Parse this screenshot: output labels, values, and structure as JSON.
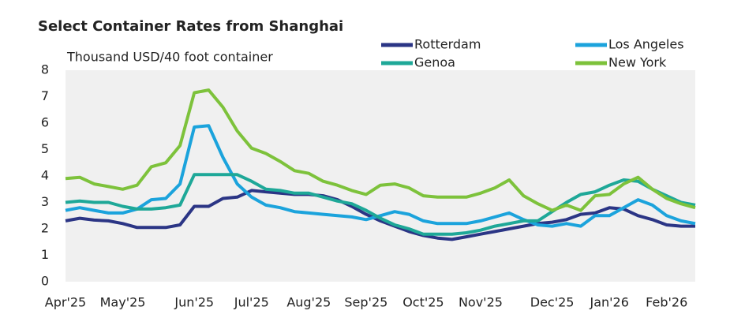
{
  "chart_data": {
    "type": "line",
    "title": "Select Container Rates from Shanghai",
    "y_label": "Thousand USD/40 foot container",
    "categories": [
      "Apr'25",
      null,
      null,
      null,
      "May'25",
      null,
      null,
      null,
      null,
      "Jun'25",
      null,
      null,
      null,
      "Jul'25",
      null,
      null,
      null,
      "Aug'25",
      null,
      null,
      null,
      "Sep'25",
      null,
      null,
      null,
      "Oct'25",
      null,
      null,
      null,
      "Nov'25",
      null,
      null,
      null,
      null,
      "Dec'25",
      null,
      null,
      null,
      "Jan'26",
      null,
      null,
      null,
      "Feb'26",
      null,
      null
    ],
    "series": [
      {
        "name": "Rotterdam",
        "color": "#2b3585",
        "values": [
          2.3,
          2.4,
          2.33,
          2.3,
          2.2,
          2.05,
          2.05,
          2.05,
          2.15,
          2.85,
          2.85,
          3.15,
          3.2,
          3.45,
          3.4,
          3.35,
          3.3,
          3.3,
          3.25,
          3.1,
          2.85,
          2.55,
          2.3,
          2.1,
          1.9,
          1.75,
          1.65,
          1.6,
          1.7,
          1.8,
          1.9,
          2.0,
          2.1,
          2.2,
          2.25,
          2.35,
          2.55,
          2.6,
          2.8,
          2.75,
          2.5,
          2.35,
          2.15,
          2.1,
          2.1
        ]
      },
      {
        "name": "Los Angeles",
        "color": "#1ba3dc",
        "values": [
          2.7,
          2.8,
          2.7,
          2.6,
          2.6,
          2.75,
          3.1,
          3.15,
          3.7,
          5.85,
          5.9,
          4.7,
          3.7,
          3.2,
          2.9,
          2.8,
          2.65,
          2.6,
          2.55,
          2.5,
          2.45,
          2.35,
          2.5,
          2.65,
          2.55,
          2.3,
          2.2,
          2.2,
          2.2,
          2.3,
          2.45,
          2.6,
          2.35,
          2.15,
          2.1,
          2.2,
          2.1,
          2.5,
          2.5,
          2.8,
          3.1,
          2.9,
          2.5,
          2.3,
          2.2
        ]
      },
      {
        "name": "Genoa",
        "color": "#1ea898",
        "values": [
          3.0,
          3.05,
          3.0,
          3.0,
          2.85,
          2.75,
          2.75,
          2.8,
          2.9,
          4.05,
          4.05,
          4.05,
          4.05,
          3.8,
          3.5,
          3.45,
          3.35,
          3.35,
          3.2,
          3.05,
          2.95,
          2.7,
          2.4,
          2.15,
          2.0,
          1.8,
          1.8,
          1.8,
          1.85,
          1.95,
          2.1,
          2.2,
          2.3,
          2.3,
          2.65,
          3.0,
          3.3,
          3.4,
          3.65,
          3.85,
          3.8,
          3.5,
          3.25,
          3.0,
          2.9
        ]
      },
      {
        "name": "New York",
        "color": "#7dc23b",
        "values": [
          3.9,
          3.95,
          3.7,
          3.6,
          3.5,
          3.65,
          4.35,
          4.5,
          5.15,
          7.15,
          7.25,
          6.6,
          5.7,
          5.05,
          4.85,
          4.55,
          4.2,
          4.1,
          3.8,
          3.65,
          3.45,
          3.3,
          3.65,
          3.7,
          3.55,
          3.25,
          3.2,
          3.2,
          3.2,
          3.35,
          3.55,
          3.85,
          3.25,
          2.95,
          2.7,
          2.9,
          2.7,
          3.25,
          3.3,
          3.7,
          3.95,
          3.5,
          3.15,
          2.95,
          2.8
        ]
      }
    ],
    "ylim": [
      0,
      8
    ],
    "yticks": [
      0,
      1,
      2,
      3,
      4,
      5,
      6,
      7,
      8
    ],
    "grid": false,
    "legend": "top-right"
  }
}
